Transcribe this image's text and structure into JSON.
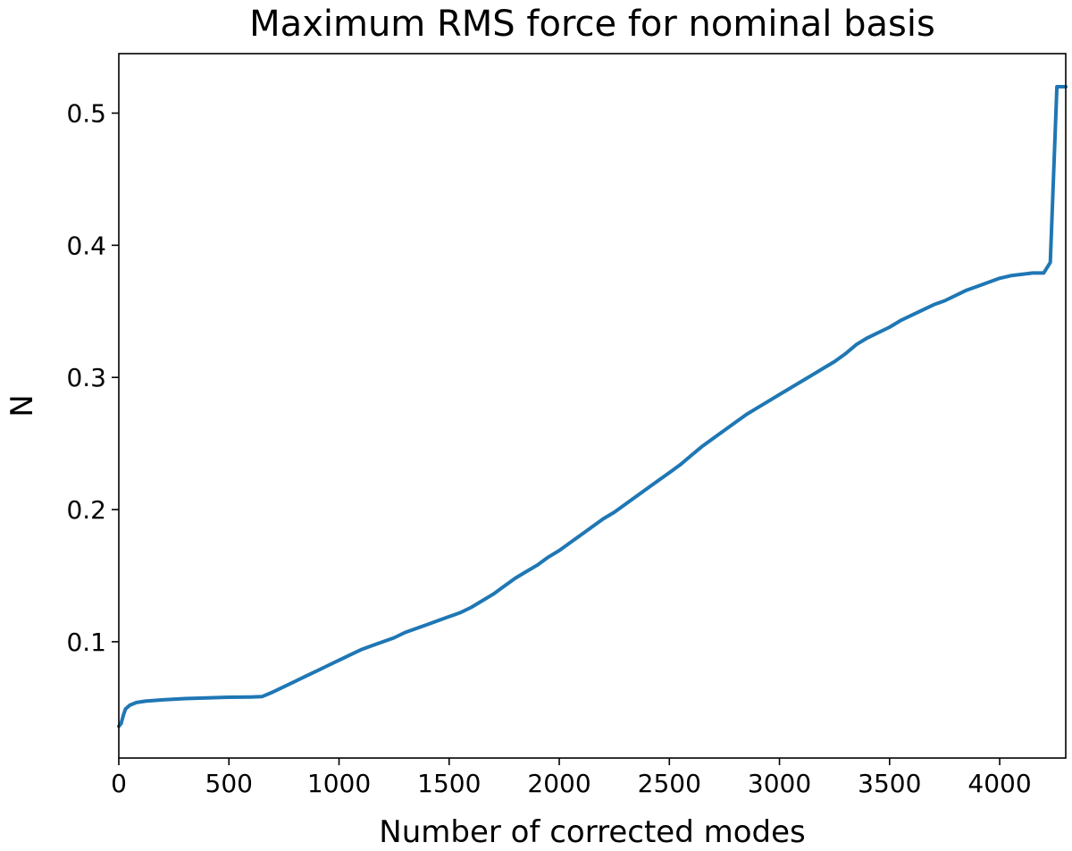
{
  "chart_data": {
    "type": "line",
    "title": "Maximum RMS force for nominal basis",
    "xlabel": "Number of corrected modes",
    "ylabel": "N",
    "xlim": [
      0,
      4300
    ],
    "ylim": [
      0.012,
      0.545
    ],
    "xticks": [
      0,
      500,
      1000,
      1500,
      2000,
      2500,
      3000,
      3500,
      4000
    ],
    "xtick_labels": [
      "0",
      "500",
      "1000",
      "1500",
      "2000",
      "2500",
      "3000",
      "3500",
      "4000"
    ],
    "yticks": [
      0.1,
      0.2,
      0.3,
      0.4,
      0.5
    ],
    "ytick_labels": [
      "0.1",
      "0.2",
      "0.3",
      "0.4",
      "0.5"
    ],
    "grid": false,
    "series": [
      {
        "color": "#1f77b4",
        "x": [
          0,
          10,
          20,
          30,
          50,
          80,
          120,
          200,
          300,
          400,
          500,
          600,
          650,
          700,
          750,
          800,
          850,
          900,
          950,
          1000,
          1050,
          1100,
          1150,
          1200,
          1250,
          1300,
          1350,
          1400,
          1450,
          1500,
          1550,
          1600,
          1650,
          1700,
          1750,
          1800,
          1850,
          1900,
          1950,
          2000,
          2050,
          2100,
          2150,
          2200,
          2250,
          2300,
          2350,
          2400,
          2450,
          2500,
          2550,
          2600,
          2650,
          2700,
          2750,
          2800,
          2850,
          2900,
          2950,
          3000,
          3050,
          3100,
          3150,
          3200,
          3250,
          3300,
          3350,
          3400,
          3450,
          3500,
          3550,
          3600,
          3650,
          3700,
          3750,
          3800,
          3850,
          3900,
          3950,
          4000,
          4050,
          4100,
          4150,
          4200,
          4230,
          4260,
          4280,
          4300
        ],
        "y": [
          0.036,
          0.038,
          0.044,
          0.049,
          0.052,
          0.054,
          0.055,
          0.056,
          0.057,
          0.0575,
          0.058,
          0.0582,
          0.0585,
          0.062,
          0.066,
          0.07,
          0.074,
          0.078,
          0.082,
          0.086,
          0.09,
          0.094,
          0.097,
          0.1,
          0.103,
          0.107,
          0.11,
          0.113,
          0.116,
          0.119,
          0.122,
          0.126,
          0.131,
          0.136,
          0.142,
          0.148,
          0.153,
          0.158,
          0.164,
          0.169,
          0.175,
          0.181,
          0.187,
          0.193,
          0.198,
          0.204,
          0.21,
          0.216,
          0.222,
          0.228,
          0.234,
          0.241,
          0.248,
          0.254,
          0.26,
          0.266,
          0.272,
          0.277,
          0.282,
          0.287,
          0.292,
          0.297,
          0.302,
          0.307,
          0.312,
          0.318,
          0.325,
          0.33,
          0.334,
          0.338,
          0.343,
          0.347,
          0.351,
          0.355,
          0.358,
          0.362,
          0.366,
          0.369,
          0.372,
          0.375,
          0.377,
          0.378,
          0.379,
          0.379,
          0.387,
          0.52,
          0.52,
          0.52
        ]
      }
    ]
  }
}
